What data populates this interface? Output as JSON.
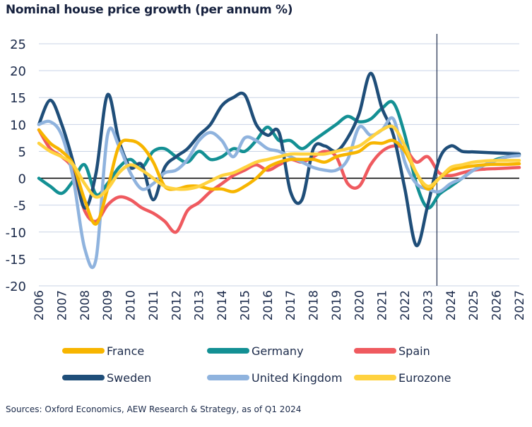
{
  "chart_data": {
    "type": "line",
    "title": "Nominal house price growth (per annum %)",
    "xlabel": "",
    "ylabel": "",
    "xlim": [
      2006,
      2027
    ],
    "ylim": [
      -20,
      25
    ],
    "yticks": [
      25,
      20,
      15,
      10,
      5,
      0,
      -5,
      -10,
      -15,
      -20
    ],
    "xticks": [
      "2006",
      "2007",
      "2008",
      "2009",
      "2010",
      "2011",
      "2012",
      "2013",
      "2014",
      "2015",
      "2016",
      "2017",
      "2018",
      "2019",
      "2020",
      "2021",
      "2022",
      "2023",
      "2024",
      "2025",
      "2026",
      "2027"
    ],
    "grid": "horizontal",
    "forecast_line_x": 2023.4,
    "legend_placement": "bottom",
    "series": [
      {
        "name": "Germany",
        "color": "#139094",
        "x": [
          2006,
          2006.5,
          2007,
          2007.5,
          2008,
          2008.5,
          2009,
          2009.5,
          2010,
          2010.5,
          2011,
          2011.5,
          2012,
          2012.5,
          2013,
          2013.5,
          2014,
          2014.5,
          2015,
          2015.5,
          2016,
          2016.5,
          2017,
          2017.5,
          2018,
          2018.5,
          2019,
          2019.5,
          2020,
          2020.5,
          2021,
          2021.5,
          2022,
          2022.5,
          2023,
          2023.5,
          2024,
          2024.5,
          2025,
          2025.5,
          2026,
          2026.5,
          2027
        ],
        "y": [
          0,
          -1.5,
          -2.8,
          -0.5,
          2.5,
          -3,
          -1,
          2,
          3.5,
          2,
          5,
          5.5,
          4,
          3,
          5,
          3.5,
          4,
          5.5,
          5,
          7,
          9.5,
          7,
          7,
          5.5,
          7,
          8.5,
          10,
          11.5,
          10.5,
          11,
          13,
          14,
          8,
          -1,
          -5.5,
          -3,
          -1.5,
          0,
          1.5,
          2.5,
          3.5,
          4,
          4.3
        ]
      },
      {
        "name": "Spain",
        "color": "#ef5a5f",
        "x": [
          2006,
          2006.5,
          2007,
          2007.5,
          2008,
          2008.5,
          2009,
          2009.5,
          2010,
          2010.5,
          2011,
          2011.5,
          2012,
          2012.5,
          2013,
          2013.5,
          2014,
          2014.5,
          2015,
          2015.5,
          2016,
          2016.5,
          2017,
          2017.5,
          2018,
          2018.5,
          2019,
          2019.5,
          2020,
          2020.5,
          2021,
          2021.5,
          2022,
          2022.5,
          2023,
          2023.5,
          2024,
          2024.5,
          2025,
          2025.5,
          2026,
          2026.5,
          2027
        ],
        "y": [
          9,
          5.5,
          4,
          1.5,
          -6,
          -8,
          -5,
          -3.5,
          -4,
          -5.5,
          -6.5,
          -8,
          -10,
          -6,
          -4.5,
          -2.5,
          -1,
          0.5,
          1.5,
          2.5,
          1.5,
          2.5,
          3.5,
          3,
          4,
          5,
          4,
          -1,
          -1.5,
          2.5,
          5,
          6,
          5.5,
          3,
          4,
          1,
          0.5,
          1,
          1.5,
          1.7,
          1.8,
          1.9,
          2
        ]
      },
      {
        "name": "Sweden",
        "color": "#1f4e79",
        "x": [
          2006,
          2006.5,
          2007,
          2007.5,
          2008,
          2008.5,
          2009,
          2009.5,
          2010,
          2010.5,
          2011,
          2011.5,
          2012,
          2012.5,
          2013,
          2013.5,
          2014,
          2014.5,
          2015,
          2015.5,
          2016,
          2016.5,
          2017,
          2017.5,
          2018,
          2018.5,
          2019,
          2019.5,
          2020,
          2020.5,
          2021,
          2021.5,
          2022,
          2022.5,
          2023,
          2023.5,
          2024,
          2024.5,
          2025,
          2025.5,
          2026,
          2026.5,
          2027
        ],
        "y": [
          10,
          14.5,
          10,
          3,
          -5.5,
          1,
          15.5,
          7,
          2,
          2.5,
          -4,
          2,
          4,
          5.5,
          8,
          10,
          13.5,
          15,
          15.5,
          10,
          8,
          8.5,
          -2.5,
          -4,
          5.5,
          6,
          5,
          7.5,
          12,
          19.5,
          13,
          8,
          -2,
          -12.5,
          -5,
          3.5,
          6,
          5,
          4.9,
          4.8,
          4.7,
          4.6,
          4.5
        ]
      },
      {
        "name": "United Kingdom",
        "color": "#8fb3de",
        "x": [
          2006,
          2006.5,
          2007,
          2007.5,
          2008,
          2008.5,
          2009,
          2009.5,
          2010,
          2010.5,
          2011,
          2011.5,
          2012,
          2012.5,
          2013,
          2013.5,
          2014,
          2014.5,
          2015,
          2015.5,
          2016,
          2016.5,
          2017,
          2017.5,
          2018,
          2018.5,
          2019,
          2019.5,
          2020,
          2020.5,
          2021,
          2021.5,
          2022,
          2022.5,
          2023,
          2023.5,
          2024,
          2024.5,
          2025,
          2025.5,
          2026,
          2026.5,
          2027
        ],
        "y": [
          10,
          10.5,
          8,
          0,
          -13,
          -15,
          8,
          6,
          1,
          -2,
          -1,
          1,
          1.5,
          3.5,
          7,
          8.5,
          7,
          4,
          7.5,
          7,
          5.5,
          5,
          4,
          3,
          2,
          1.5,
          1.5,
          3.5,
          9.5,
          8,
          9,
          11,
          3,
          -1,
          -2,
          -2.5,
          -1,
          0,
          1.5,
          2.5,
          3.3,
          4,
          4.2
        ]
      },
      {
        "name": "France",
        "color": "#f7b500",
        "x": [
          2006,
          2006.5,
          2007,
          2007.5,
          2008,
          2008.5,
          2009,
          2009.5,
          2010,
          2010.5,
          2011,
          2011.5,
          2012,
          2012.5,
          2013,
          2013.5,
          2014,
          2014.5,
          2015,
          2015.5,
          2016,
          2016.5,
          2017,
          2017.5,
          2018,
          2018.5,
          2019,
          2019.5,
          2020,
          2020.5,
          2021,
          2021.5,
          2022,
          2022.5,
          2023,
          2023.5,
          2024,
          2024.5,
          2025,
          2025.5,
          2026,
          2026.5,
          2027
        ],
        "y": [
          9,
          6.5,
          5,
          2.5,
          -4,
          -8.5,
          -2,
          6,
          7,
          6,
          3,
          -1.5,
          -2,
          -1.5,
          -1.5,
          -2,
          -2,
          -2.5,
          -1.5,
          0,
          2,
          3,
          3.5,
          3.5,
          3.5,
          3,
          4,
          4.5,
          5,
          6.5,
          6.5,
          7,
          5,
          1,
          -2,
          0,
          1.5,
          2,
          2.3,
          2.5,
          2.6,
          2.6,
          2.7
        ]
      },
      {
        "name": "Eurozone",
        "color": "#ffd23f",
        "x": [
          2006,
          2006.5,
          2007,
          2007.5,
          2008,
          2008.5,
          2009,
          2009.5,
          2010,
          2010.5,
          2011,
          2011.5,
          2012,
          2012.5,
          2013,
          2013.5,
          2014,
          2014.5,
          2015,
          2015.5,
          2016,
          2016.5,
          2017,
          2017.5,
          2018,
          2018.5,
          2019,
          2019.5,
          2020,
          2020.5,
          2021,
          2021.5,
          2022,
          2022.5,
          2023,
          2023.5,
          2024,
          2024.5,
          2025,
          2025.5,
          2026,
          2026.5,
          2027
        ],
        "y": [
          6.5,
          5,
          4,
          2.5,
          -1,
          -3.5,
          -2,
          1,
          2.5,
          1.5,
          0,
          -1.5,
          -2,
          -2,
          -1.5,
          -0.5,
          0.5,
          1,
          2,
          3,
          3.5,
          4,
          4.5,
          4.5,
          4.5,
          4.5,
          5,
          5.5,
          6,
          7.5,
          9,
          9.5,
          6,
          1,
          -1.5,
          0,
          2,
          2.5,
          3,
          3.2,
          3.3,
          3.3,
          3.3
        ]
      }
    ],
    "legend_order": [
      "France",
      "Germany",
      "Spain",
      "Sweden",
      "United Kingdom",
      "Eurozone"
    ]
  },
  "source_note": "Sources: Oxford Economics, AEW Research & Strategy, as of Q1 2024"
}
